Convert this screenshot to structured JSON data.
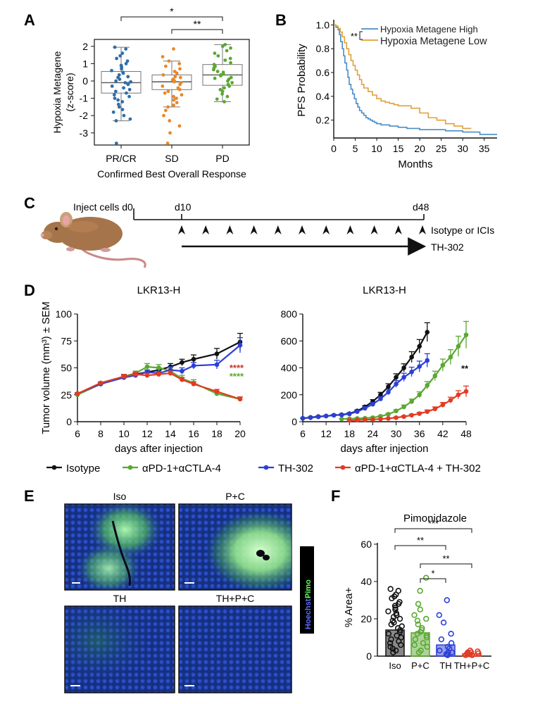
{
  "colors": {
    "black": "#111111",
    "orange": "#e8882a",
    "steel": "#2f6ea8",
    "green": "#5aa832",
    "blue": "#2b3fd6",
    "red": "#e23b24",
    "darkred": "#c0392b",
    "km_high": "#4a8cc7",
    "km_low": "#e0a03a",
    "stain_blue": "#1d3a9a",
    "stain_green": "#b4ffb4"
  },
  "panels": {
    "a": "A",
    "b": "B",
    "c": "C",
    "d": "D",
    "e": "E",
    "f": "F"
  },
  "chart_data": [
    {
      "id": "A",
      "type": "box-strip",
      "ylabel_line1": "Hypoxia Metagene",
      "ylabel_line2": "(z-score)",
      "xlabel": "Confirmed Best Overall Response",
      "categories": [
        "PR/CR",
        "SD",
        "PD"
      ],
      "ylim": [
        -3.7,
        2.4
      ],
      "yticks": [
        -3,
        -2,
        -1,
        0,
        1,
        2
      ],
      "boxes": [
        {
          "q1": -0.7,
          "median": -0.1,
          "q3": 0.55,
          "whisker_low": -2.3,
          "whisker_high": 1.95,
          "outliers": [
            -3.6
          ]
        },
        {
          "q1": -0.5,
          "median": -0.05,
          "q3": 0.35,
          "whisker_low": -1.5,
          "whisker_high": 1.15,
          "outliers": [
            -3.6
          ]
        },
        {
          "q1": -0.25,
          "median": 0.35,
          "q3": 0.95,
          "whisker_low": -1.2,
          "whisker_high": 2.1,
          "outliers": []
        }
      ],
      "points": [
        [
          1.95,
          1.85,
          1.6,
          1.45,
          1.3,
          1.15,
          1.0,
          0.9,
          0.8,
          0.7,
          0.6,
          0.5,
          0.45,
          0.35,
          0.25,
          0.2,
          0.1,
          0.0,
          -0.05,
          -0.1,
          -0.15,
          -0.2,
          -0.3,
          -0.4,
          -0.5,
          -0.6,
          -0.7,
          -0.8,
          -0.9,
          -1.0,
          -1.1,
          -1.2,
          -1.35,
          -1.5,
          -1.65,
          -1.8,
          -2.0,
          -2.2,
          -2.3,
          -3.6
        ],
        [
          1.85,
          1.4,
          1.15,
          1.0,
          0.85,
          0.7,
          0.55,
          0.45,
          0.35,
          0.25,
          0.2,
          0.1,
          0.05,
          0.0,
          -0.05,
          -0.1,
          -0.2,
          -0.3,
          -0.4,
          -0.5,
          -0.6,
          -0.7,
          -0.8,
          -0.9,
          -1.0,
          -1.1,
          -1.25,
          -1.4,
          -1.5,
          -1.7,
          -2.0,
          -2.3,
          -2.6,
          -3.0,
          -3.6
        ],
        [
          2.1,
          2.0,
          1.9,
          1.75,
          1.6,
          1.45,
          1.3,
          1.2,
          1.05,
          0.95,
          0.85,
          0.75,
          0.65,
          0.55,
          0.5,
          0.4,
          0.35,
          0.3,
          0.2,
          0.15,
          0.1,
          0.0,
          -0.1,
          -0.2,
          -0.3,
          -0.4,
          -0.5,
          -0.6,
          -0.75,
          -0.9,
          -1.05,
          -1.2
        ]
      ],
      "significance": [
        {
          "from": "PR/CR",
          "to": "PD",
          "label": "*"
        },
        {
          "from": "SD",
          "to": "PD",
          "label": "**"
        }
      ]
    },
    {
      "id": "B",
      "type": "line",
      "subtype": "kaplan-meier",
      "ylabel": "PFS Probability",
      "xlabel": "Months",
      "xlim": [
        0,
        38
      ],
      "ylim": [
        0.05,
        1.02
      ],
      "xticks": [
        0,
        5,
        10,
        15,
        20,
        25,
        30,
        35
      ],
      "yticks": [
        0.2,
        0.4,
        0.6,
        0.8,
        1.0
      ],
      "ytick_labels": [
        "0.2",
        "0.4",
        "0.6",
        "0.8",
        "1.0"
      ],
      "sig_label": "**",
      "series": [
        {
          "name": "Hypoxia Metagene High",
          "x": [
            0,
            0.5,
            1,
            1.3,
            1.6,
            2,
            2.3,
            2.6,
            3,
            3.3,
            3.6,
            4,
            4.4,
            4.8,
            5.2,
            5.6,
            6,
            6.5,
            7,
            7.5,
            8,
            8.5,
            9,
            9.5,
            10,
            11,
            12,
            13,
            14,
            15,
            16,
            17,
            18,
            20,
            22,
            24,
            26,
            28,
            30,
            32,
            34,
            38
          ],
          "y": [
            1.0,
            0.98,
            0.96,
            0.92,
            0.86,
            0.8,
            0.74,
            0.68,
            0.62,
            0.56,
            0.5,
            0.46,
            0.42,
            0.38,
            0.34,
            0.31,
            0.28,
            0.26,
            0.24,
            0.22,
            0.21,
            0.2,
            0.19,
            0.18,
            0.17,
            0.16,
            0.16,
            0.15,
            0.15,
            0.14,
            0.14,
            0.13,
            0.13,
            0.12,
            0.12,
            0.12,
            0.11,
            0.11,
            0.1,
            0.1,
            0.08,
            0.08
          ]
        },
        {
          "name": "Hypoxia Metagene Low",
          "x": [
            0,
            0.5,
            1,
            1.5,
            2,
            2.5,
            3,
            3.5,
            4,
            4.5,
            5,
            5.5,
            6,
            6.5,
            7,
            8,
            9,
            10,
            11,
            12,
            13,
            14,
            15,
            16,
            18,
            20,
            22,
            24,
            26,
            28,
            30,
            32
          ],
          "y": [
            1.0,
            0.99,
            0.97,
            0.94,
            0.9,
            0.85,
            0.8,
            0.75,
            0.7,
            0.66,
            0.62,
            0.58,
            0.54,
            0.5,
            0.47,
            0.44,
            0.41,
            0.38,
            0.36,
            0.35,
            0.34,
            0.33,
            0.32,
            0.32,
            0.3,
            0.26,
            0.22,
            0.2,
            0.17,
            0.15,
            0.13,
            0.13
          ]
        }
      ]
    },
    {
      "id": "D-left",
      "type": "line",
      "title": "LKR13-H",
      "ylabel": "Tumor volume (mm³) ± SEM",
      "xlabel": "days after injection",
      "xlim": [
        6,
        20
      ],
      "ylim": [
        0,
        100
      ],
      "xticks": [
        6,
        8,
        10,
        12,
        14,
        16,
        18,
        20
      ],
      "yticks": [
        0,
        25,
        50,
        75,
        100
      ],
      "sig": [
        {
          "label": "****",
          "color": "red"
        },
        {
          "label": "****",
          "color": "green"
        }
      ],
      "series": [
        {
          "name": "Isotype",
          "x": [
            6,
            8,
            10,
            11,
            12,
            13,
            14,
            15,
            16,
            18,
            20
          ],
          "y": [
            26,
            35,
            42,
            44,
            46,
            48,
            51,
            55,
            58,
            63,
            74
          ],
          "err": [
            1,
            1,
            2,
            2,
            2,
            2,
            3,
            3,
            4,
            5,
            8
          ]
        },
        {
          "name": "αPD-1+αCTLA-4",
          "x": [
            6,
            8,
            10,
            11,
            12,
            13,
            14,
            15,
            16,
            18,
            20
          ],
          "y": [
            25,
            35,
            42,
            45,
            51,
            50,
            47,
            40,
            36,
            26,
            21
          ],
          "err": [
            1,
            1,
            2,
            2,
            3,
            3,
            3,
            3,
            3,
            2,
            2
          ]
        },
        {
          "name": "TH-302",
          "x": [
            6,
            8,
            10,
            11,
            12,
            13,
            14,
            15,
            16,
            18,
            20
          ],
          "y": [
            26,
            35,
            41,
            43,
            46,
            45,
            48,
            47,
            52,
            53,
            71
          ],
          "err": [
            1,
            1,
            2,
            2,
            2,
            2,
            3,
            3,
            3,
            4,
            7
          ]
        },
        {
          "name": "αPD-1+αCTLA-4 + TH-302",
          "x": [
            6,
            8,
            10,
            11,
            12,
            13,
            14,
            15,
            16,
            18,
            20
          ],
          "y": [
            26,
            36,
            42,
            44,
            43,
            44,
            45,
            39,
            35,
            28,
            21
          ],
          "err": [
            1,
            1,
            2,
            2,
            2,
            2,
            2,
            2,
            2,
            2,
            2
          ]
        }
      ]
    },
    {
      "id": "D-right",
      "type": "line",
      "title": "LKR13-H",
      "xlabel": "days after injection",
      "xlim": [
        6,
        48
      ],
      "ylim": [
        0,
        800
      ],
      "xticks": [
        6,
        12,
        18,
        24,
        30,
        36,
        42,
        48
      ],
      "yticks": [
        0,
        200,
        400,
        600,
        800
      ],
      "sig": [
        {
          "label": "**",
          "color": "black"
        }
      ],
      "series": [
        {
          "name": "Isotype",
          "x": [
            6,
            8,
            10,
            12,
            14,
            16,
            18,
            20,
            22,
            24,
            26,
            28,
            30,
            32,
            34,
            36,
            38
          ],
          "y": [
            25,
            32,
            38,
            42,
            48,
            52,
            60,
            80,
            110,
            150,
            200,
            260,
            330,
            400,
            480,
            560,
            665
          ],
          "err": [
            3,
            3,
            4,
            4,
            5,
            5,
            6,
            8,
            10,
            14,
            18,
            22,
            26,
            30,
            40,
            50,
            70
          ]
        },
        {
          "name": "αPD-1+αCTLA-4",
          "x": [
            16,
            18,
            20,
            22,
            24,
            26,
            28,
            30,
            32,
            34,
            36,
            38,
            40,
            42,
            44,
            46,
            48
          ],
          "y": [
            20,
            22,
            24,
            26,
            30,
            40,
            55,
            80,
            110,
            150,
            200,
            270,
            340,
            420,
            480,
            560,
            645
          ],
          "err": [
            3,
            3,
            3,
            4,
            5,
            6,
            8,
            10,
            14,
            18,
            22,
            28,
            35,
            45,
            55,
            75,
            100
          ]
        },
        {
          "name": "TH-302",
          "x": [
            6,
            8,
            10,
            12,
            14,
            16,
            18,
            20,
            22,
            24,
            26,
            28,
            30,
            32,
            34,
            36,
            38
          ],
          "y": [
            25,
            30,
            36,
            42,
            48,
            50,
            58,
            75,
            100,
            130,
            170,
            220,
            280,
            330,
            370,
            410,
            455
          ],
          "err": [
            3,
            3,
            4,
            4,
            5,
            5,
            6,
            8,
            10,
            12,
            16,
            20,
            25,
            30,
            35,
            40,
            50
          ]
        },
        {
          "name": "αPD-1+αCTLA-4 + TH-302",
          "x": [
            18,
            20,
            22,
            24,
            26,
            28,
            30,
            32,
            34,
            36,
            38,
            40,
            42,
            44,
            46,
            48
          ],
          "y": [
            10,
            12,
            14,
            16,
            20,
            24,
            30,
            38,
            48,
            60,
            75,
            95,
            125,
            160,
            200,
            225
          ],
          "err": [
            2,
            2,
            2,
            3,
            3,
            4,
            5,
            6,
            8,
            10,
            12,
            15,
            18,
            22,
            30,
            40
          ]
        }
      ]
    },
    {
      "id": "F",
      "type": "bar",
      "title": "Pimonidazole",
      "ylabel": "% Area+",
      "categories": [
        "Iso",
        "P+C",
        "TH",
        "TH+P+C"
      ],
      "values": [
        14,
        12.5,
        6,
        1.2
      ],
      "ylim": [
        0,
        60
      ],
      "yticks": [
        0,
        20,
        40,
        60
      ],
      "points": [
        [
          36,
          35,
          33,
          32,
          31,
          29,
          28,
          27,
          26,
          25,
          24,
          23,
          22,
          21,
          20,
          19,
          18,
          17,
          16,
          15,
          14,
          13,
          12,
          11,
          10,
          9,
          8,
          7,
          6,
          5,
          4,
          3,
          2
        ],
        [
          42,
          35,
          28,
          25,
          22,
          20,
          19,
          17,
          15,
          14,
          13,
          12,
          11,
          10,
          9,
          7,
          6,
          5,
          3,
          2
        ],
        [
          30,
          22,
          18,
          12,
          9,
          7,
          5,
          4,
          3,
          2,
          2,
          1,
          1,
          0.5
        ],
        [
          3,
          2.5,
          2,
          2,
          1.5,
          1.5,
          1,
          1,
          0.5,
          0.5
        ]
      ],
      "significance": [
        {
          "from": "Iso",
          "to": "TH+P+C",
          "label": "***"
        },
        {
          "from": "Iso",
          "to": "TH",
          "label": "**"
        },
        {
          "from": "P+C",
          "to": "TH+P+C",
          "label": "**"
        },
        {
          "from": "P+C",
          "to": "TH",
          "label": "*"
        }
      ]
    }
  ],
  "kaplan_legend": {
    "high": "Hypoxia Metagene High",
    "low": "Hypoxia Metagene Low"
  },
  "schematic": {
    "inject_label": "Inject cells d0",
    "d10_label": "d10",
    "d48_label": "d48",
    "isotype_label": "Isotype or ICIs",
    "th302_label": "TH-302",
    "arrowhead_count": 11
  },
  "legend_d": [
    {
      "label": "Isotype",
      "color": "black"
    },
    {
      "label": "αPD-1+αCTLA-4",
      "color": "green"
    },
    {
      "label": "TH-302",
      "color": "blue"
    },
    {
      "label": "αPD-1+αCTLA-4 + TH-302",
      "color": "red"
    }
  ],
  "panel_e": {
    "iso": "Iso",
    "pc": "P+C",
    "th": "TH",
    "thpc": "TH+P+C",
    "stain_pimo": "Pimo",
    "stain_hoechst": "Hoechst"
  }
}
